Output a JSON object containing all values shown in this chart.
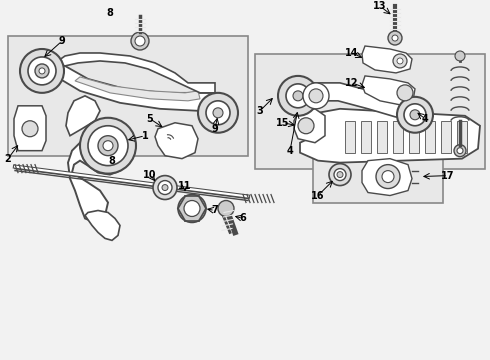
{
  "bg_color": "#f2f2f2",
  "line_color": "#4a4a4a",
  "dark_line": "#333333",
  "box_bg": "#e8e8e8",
  "box_edge": "#888888",
  "component_fill": "#ffffff",
  "shadow_fill": "#cccccc",
  "mid_fill": "#dddddd",
  "figsize": [
    4.9,
    3.6
  ],
  "dpi": 100,
  "xlim": [
    0,
    490
  ],
  "ylim": [
    0,
    360
  ]
}
